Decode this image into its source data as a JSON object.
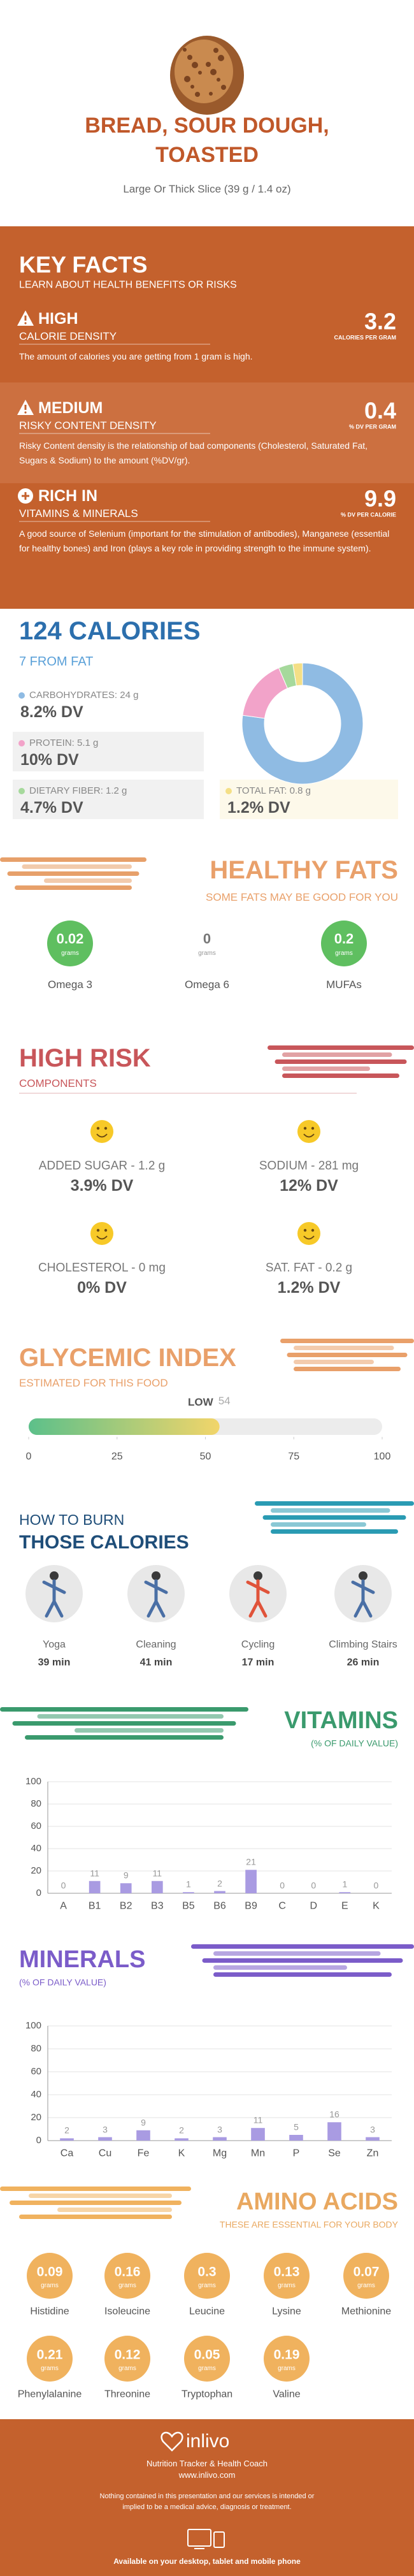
{
  "header": {
    "title": "BREAD, SOUR DOUGH, TOASTED",
    "subtitle": "Large Or Thick Slice (39 g / 1.4 oz)"
  },
  "key_facts": {
    "title": "KEY FACTS",
    "subtitle": "LEARN ABOUT HEALTH BENEFITS OR RISKS",
    "facts": [
      {
        "level": "HIGH",
        "name": "CALORIE DENSITY",
        "value": 3.2,
        "unit": "CALORIES PER GRAM",
        "description": "The amount of calories you are getting from 1 gram is high."
      },
      {
        "level": "MEDIUM",
        "name": "RISKY CONTENT DENSITY",
        "value": 0.4,
        "unit": "% DV PER GRAM",
        "description": "Risky Content density is the relationship of bad components (Cholesterol, Saturated Fat, Sugars & Sodium) to the amount (%DV/gr)."
      },
      {
        "level": "RICH IN",
        "name": "VITAMINS & MINERALS",
        "value": 9.9,
        "unit": "% DV PER CALORIE",
        "description": "A good source of Selenium (important for the stimulation of antibodies), Manganese (essential for healthy bones) and Iron (plays a key role in providing strength to the immune system)."
      }
    ]
  },
  "calories": {
    "title": "124 CALORIES",
    "subtitle": "7 FROM FAT",
    "nutrients": [
      {
        "label": "CARBOHYDRATES: 24 g",
        "value": 24,
        "dv": "8.2% DV",
        "color": "#8fbbe3"
      },
      {
        "label": "PROTEIN: 5.1 g",
        "value": 5.1,
        "dv": "10% DV",
        "color": "#f2a3c9"
      },
      {
        "label": "DIETARY FIBER: 1.2 g",
        "value": 1.2,
        "dv": "4.7% DV",
        "color": "#a6d99c"
      },
      {
        "label": "TOTAL FAT: 0.8 g",
        "value": 0.8,
        "dv": "1.2% DV",
        "color": "#f4df86"
      }
    ]
  },
  "healthy_fats": {
    "title": "HEALTHY FATS",
    "subtitle": "SOME FATS MAY BE GOOD FOR YOU",
    "unit": "grams",
    "items": [
      {
        "name": "Omega 3",
        "value": 0.02
      },
      {
        "name": "Omega 6",
        "value": 0
      },
      {
        "name": "MUFAs",
        "value": 0.2
      }
    ]
  },
  "high_risk": {
    "title": "HIGH RISK",
    "subtitle": "COMPONENTS",
    "items": [
      {
        "label": "ADDED SUGAR - 1.2 g",
        "dv": "3.9% DV"
      },
      {
        "label": "SODIUM - 281 mg",
        "dv": "12% DV"
      },
      {
        "label": "CHOLESTEROL - 0 mg",
        "dv": "0% DV"
      },
      {
        "label": "SAT. FAT - 0.2 g",
        "dv": "1.2% DV"
      }
    ]
  },
  "glycemic_index": {
    "title": "GLYCEMIC INDEX",
    "subtitle": "ESTIMATED FOR THIS FOOD",
    "level": "LOW",
    "value": 54,
    "xlim": [
      0,
      100
    ],
    "xticks": [
      0,
      25,
      50,
      75,
      100
    ]
  },
  "burn": {
    "title_line1": "HOW TO BURN",
    "title_line2": "THOSE CALORIES",
    "activities": [
      {
        "name": "Yoga",
        "time": "39 min"
      },
      {
        "name": "Cleaning",
        "time": "41 min"
      },
      {
        "name": "Cycling",
        "time": "17 min"
      },
      {
        "name": "Climbing Stairs",
        "time": "26 min"
      }
    ]
  },
  "vitamins": {
    "title": "VITAMINS",
    "subtitle": "(% OF DAILY VALUE)",
    "chart": {
      "type": "bar",
      "categories": [
        "A",
        "B1",
        "B2",
        "B3",
        "B5",
        "B6",
        "B9",
        "C",
        "D",
        "E",
        "K"
      ],
      "values": [
        0,
        11,
        9,
        11,
        1,
        2,
        21,
        0,
        0,
        1,
        0
      ],
      "color": "#a99be2",
      "ylim": [
        0,
        100
      ],
      "yticks": [
        0,
        20,
        40,
        60,
        80,
        100
      ],
      "grid": true
    }
  },
  "minerals": {
    "title": "MINERALS",
    "subtitle": "(% OF DAILY VALUE)",
    "chart": {
      "type": "bar",
      "categories": [
        "Ca",
        "Cu",
        "Fe",
        "K",
        "Mg",
        "Mn",
        "P",
        "Se",
        "Zn"
      ],
      "values": [
        2,
        3,
        9,
        2,
        3,
        11,
        5,
        16,
        3
      ],
      "color": "#a99be2",
      "ylim": [
        0,
        100
      ],
      "yticks": [
        0,
        20,
        40,
        60,
        80,
        100
      ],
      "grid": true
    }
  },
  "amino_acids": {
    "title": "AMINO ACIDS",
    "subtitle": "THESE ARE ESSENTIAL FOR YOUR BODY",
    "unit": "grams",
    "items": [
      {
        "name": "Histidine",
        "value": 0.09
      },
      {
        "name": "Isoleucine",
        "value": 0.16
      },
      {
        "name": "Leucine",
        "value": 0.3
      },
      {
        "name": "Lysine",
        "value": 0.13
      },
      {
        "name": "Methionine",
        "value": 0.07
      },
      {
        "name": "Phenylalanine",
        "value": 0.21
      },
      {
        "name": "Threonine",
        "value": 0.12
      },
      {
        "name": "Tryptophan",
        "value": 0.05
      },
      {
        "name": "Valine",
        "value": 0.19
      }
    ]
  },
  "footer": {
    "brand": "inlivo",
    "tagline": "Nutrition Tracker & Health Coach",
    "url": "www.inlivo.com",
    "disclaimer": "Nothing contained in this presentation and our services is intended or implied to be a medical advice, diagnosis or treatment.",
    "availability": "Available on your desktop, tablet and mobile phone"
  }
}
